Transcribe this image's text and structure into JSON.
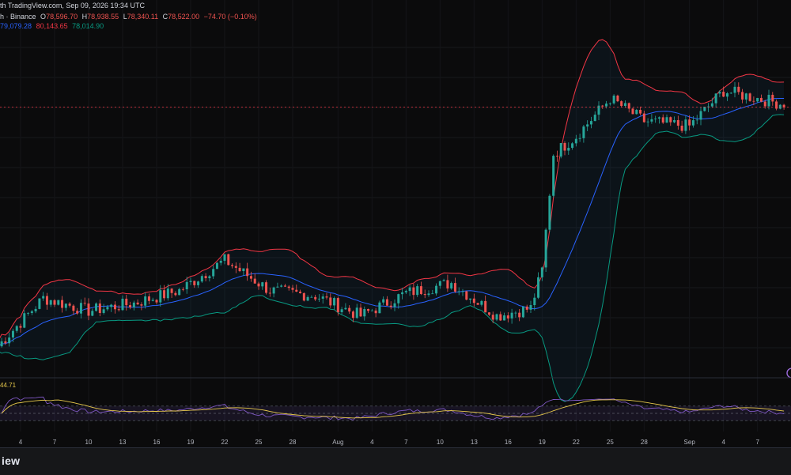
{
  "header": {
    "attribution": "th TradingView.com, Sep 09, 2026 19:34 UTC",
    "symbol_suffix": "h · Binance",
    "ohlc": [
      {
        "label": "O",
        "value": "78,596.70"
      },
      {
        "label": "H",
        "value": "78,938.55"
      },
      {
        "label": "L",
        "value": "78,340.11"
      },
      {
        "label": "C",
        "value": "78,522.00"
      }
    ],
    "change": "−74.70 (−0.10%)",
    "bollinger": {
      "basis": "79,079.28",
      "upper": "80,143.65",
      "lower": "78,014.90"
    }
  },
  "rsi": {
    "value_label": "44.71"
  },
  "footer": {
    "brand": "iew"
  },
  "colors": {
    "up": "#26a69a",
    "down": "#ef5350",
    "basis": "#2962ff",
    "upper_band": "#f23645",
    "lower_band": "#089981",
    "rsi_line": "#7e57c2",
    "rsi_ma": "#e6c84b",
    "background": "#0b0b0c"
  },
  "chart_data": [
    {
      "type": "candlestick",
      "title": "",
      "x_tick_labels": [
        "4",
        "7",
        "10",
        "13",
        "16",
        "19",
        "22",
        "25",
        "28",
        "Aug",
        "4",
        "7",
        "10",
        "13",
        "16",
        "19",
        "22",
        "25",
        "28",
        "Sep",
        "4",
        "7"
      ],
      "price_range": [
        72000,
        85500
      ],
      "overlays": [
        "Bollinger Bands (basis, upper, lower)"
      ],
      "anchor_closes": [
        {
          "date": "Jul 02",
          "close": 73000
        },
        {
          "date": "Jul 06",
          "close": 74900
        },
        {
          "date": "Jul 10",
          "close": 74400
        },
        {
          "date": "Jul 14",
          "close": 74700
        },
        {
          "date": "Jul 18",
          "close": 75200
        },
        {
          "date": "Jul 22",
          "close": 76400
        },
        {
          "date": "Jul 26",
          "close": 75200
        },
        {
          "date": "Jul 30",
          "close": 75000
        },
        {
          "date": "Aug 03",
          "close": 74200
        },
        {
          "date": "Aug 07",
          "close": 75100
        },
        {
          "date": "Aug 11",
          "close": 75500
        },
        {
          "date": "Aug 15",
          "close": 74200
        },
        {
          "date": "Aug 18",
          "close": 74500
        },
        {
          "date": "Aug 19",
          "close": 76000
        },
        {
          "date": "Aug 20",
          "close": 80600
        },
        {
          "date": "Aug 22",
          "close": 81300
        },
        {
          "date": "Aug 25",
          "close": 82800
        },
        {
          "date": "Aug 28",
          "close": 81900
        },
        {
          "date": "Sep 01",
          "close": 81700
        },
        {
          "date": "Sep 04",
          "close": 83100
        },
        {
          "date": "Sep 07",
          "close": 82800
        },
        {
          "date": "Sep 09",
          "close": 82600
        }
      ],
      "current_price_line": 82450
    },
    {
      "type": "line",
      "title": "",
      "series": [
        {
          "name": "RSI"
        },
        {
          "name": "RSI-based MA"
        }
      ],
      "ylim": [
        0,
        100
      ],
      "levels": [
        70,
        50,
        30
      ],
      "last_value": 44.71
    }
  ]
}
